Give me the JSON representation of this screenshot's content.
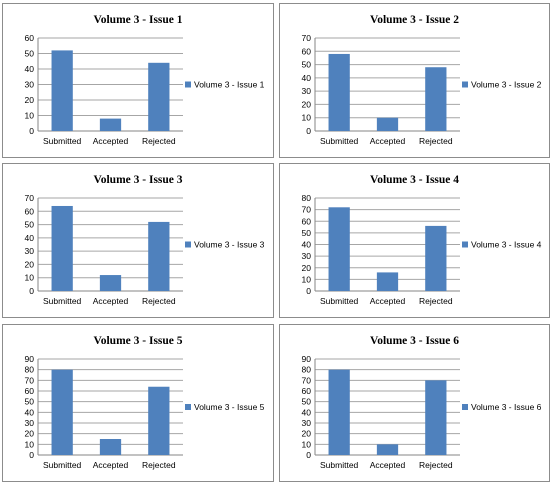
{
  "colors": {
    "bar": "#4F81BD",
    "grid": "#A6A6A6",
    "axis": "#868686"
  },
  "chart_data": [
    {
      "type": "bar",
      "title": "Volume 3 - Issue  1",
      "categories": [
        "Submitted",
        "Accepted",
        "Rejected"
      ],
      "series": [
        {
          "name": "Volume 3 - Issue 1",
          "values": [
            52,
            8,
            44
          ]
        }
      ],
      "ylim": [
        0,
        60
      ],
      "ystep": 10,
      "grid": true,
      "legend": "right"
    },
    {
      "type": "bar",
      "title": "Volume 3 - Issue  2",
      "categories": [
        "Submitted",
        "Accepted",
        "Rejected"
      ],
      "series": [
        {
          "name": "Volume 3 - Issue 2",
          "values": [
            58,
            10,
            48
          ]
        }
      ],
      "ylim": [
        0,
        70
      ],
      "ystep": 10,
      "grid": true,
      "legend": "right"
    },
    {
      "type": "bar",
      "title": "Volume 3 - Issue  3",
      "categories": [
        "Submitted",
        "Accepted",
        "Rejected"
      ],
      "series": [
        {
          "name": "Volume 3 - Issue 3",
          "values": [
            64,
            12,
            52
          ]
        }
      ],
      "ylim": [
        0,
        70
      ],
      "ystep": 10,
      "grid": true,
      "legend": "right"
    },
    {
      "type": "bar",
      "title": "Volume 3 - Issue  4",
      "categories": [
        "Submitted",
        "Accepted",
        "Rejected"
      ],
      "series": [
        {
          "name": "Volume 3 - Issue 4",
          "values": [
            72,
            16,
            56
          ]
        }
      ],
      "ylim": [
        0,
        80
      ],
      "ystep": 10,
      "grid": true,
      "legend": "right"
    },
    {
      "type": "bar",
      "title": "Volume 3 - Issue  5",
      "categories": [
        "Submitted",
        "Accepted",
        "Rejected"
      ],
      "series": [
        {
          "name": "Volume 3 - Issue 5",
          "values": [
            80,
            15,
            64
          ]
        }
      ],
      "ylim": [
        0,
        90
      ],
      "ystep": 10,
      "grid": true,
      "legend": "right"
    },
    {
      "type": "bar",
      "title": "Volume 3 - Issue  6",
      "categories": [
        "Submitted",
        "Accepted",
        "Rejected"
      ],
      "series": [
        {
          "name": "Volume 3 - Issue 6",
          "values": [
            80,
            10,
            70
          ]
        }
      ],
      "ylim": [
        0,
        90
      ],
      "ystep": 10,
      "grid": true,
      "legend": "right"
    }
  ]
}
